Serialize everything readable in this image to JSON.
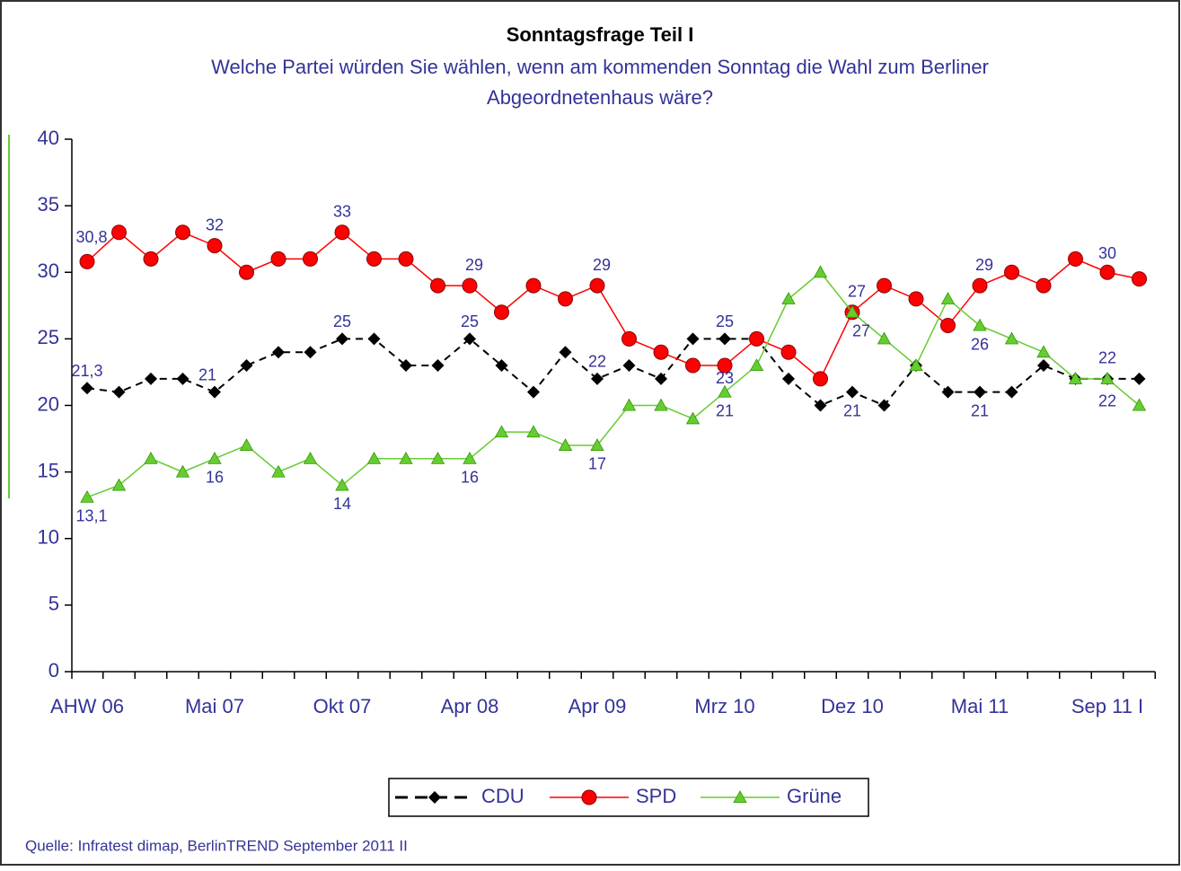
{
  "chart_data": {
    "type": "line",
    "title": "Sonntagsfrage Teil I",
    "subtitle": [
      "Welche Partei würden Sie wählen, wenn am kommenden Sonntag die Wahl zum Berliner",
      "Abgeordnetenhaus wäre?"
    ],
    "source": "Quelle: Infratest dimap, BerlinTREND September 2011 II",
    "categories": [
      "AHW 06",
      null,
      null,
      null,
      "Mai 07",
      null,
      null,
      null,
      "Okt 07",
      null,
      null,
      null,
      "Apr 08",
      null,
      null,
      null,
      "Apr 09",
      null,
      null,
      null,
      "Mrz 10",
      null,
      null,
      null,
      "Dez 10",
      null,
      null,
      null,
      "Mai 11",
      null,
      null,
      null,
      "Sep 11 I",
      null
    ],
    "ylim": [
      0,
      40
    ],
    "yticks": [
      0,
      5,
      10,
      15,
      20,
      25,
      30,
      35,
      40
    ],
    "grid": false,
    "legend": "bottom",
    "series": [
      {
        "name": "CDU",
        "color": "#000000",
        "dash": true,
        "marker": "diamond",
        "values": [
          21.3,
          21,
          22,
          22,
          21,
          23,
          24,
          24,
          25,
          25,
          23,
          23,
          25,
          23,
          21,
          24,
          22,
          23,
          22,
          25,
          25,
          25,
          22,
          20,
          21,
          20,
          23,
          21,
          21,
          21,
          23,
          22,
          22,
          22
        ],
        "value_labels": [
          "21,3",
          null,
          null,
          null,
          "21",
          null,
          null,
          null,
          "25",
          null,
          null,
          null,
          "25",
          null,
          null,
          null,
          "22",
          null,
          null,
          null,
          "25",
          null,
          null,
          null,
          "21",
          null,
          null,
          null,
          "21",
          null,
          null,
          null,
          "22",
          null
        ]
      },
      {
        "name": "SPD",
        "color": "#ff0000",
        "dash": false,
        "marker": "circle",
        "values": [
          30.8,
          33,
          31,
          33,
          32,
          30,
          31,
          31,
          33,
          31,
          31,
          29,
          29,
          27,
          29,
          28,
          29,
          25,
          24,
          23,
          23,
          25,
          24,
          22,
          27,
          29,
          28,
          26,
          29,
          30,
          29,
          31,
          30,
          29.5
        ],
        "value_labels": [
          "30,8",
          null,
          null,
          null,
          "32",
          null,
          null,
          null,
          "33",
          null,
          null,
          null,
          "29",
          null,
          null,
          null,
          "29",
          null,
          null,
          null,
          "23",
          null,
          null,
          null,
          "27",
          null,
          null,
          null,
          "29",
          null,
          null,
          null,
          "30",
          null
        ]
      },
      {
        "name": "Grüne",
        "color": "#66cc33",
        "dash": false,
        "marker": "triangle",
        "values": [
          13.1,
          14,
          16,
          15,
          16,
          17,
          15,
          16,
          14,
          16,
          16,
          16,
          16,
          18,
          18,
          17,
          17,
          20,
          20,
          19,
          21,
          23,
          28,
          30,
          27,
          25,
          23,
          28,
          26,
          25,
          24,
          22,
          22,
          20
        ],
        "value_labels": [
          "13,1",
          null,
          null,
          null,
          "16",
          null,
          null,
          null,
          "14",
          null,
          null,
          null,
          "16",
          null,
          null,
          null,
          "17",
          null,
          null,
          null,
          "21",
          null,
          null,
          null,
          "27",
          null,
          null,
          null,
          "26",
          null,
          null,
          null,
          "22",
          null
        ]
      }
    ]
  }
}
